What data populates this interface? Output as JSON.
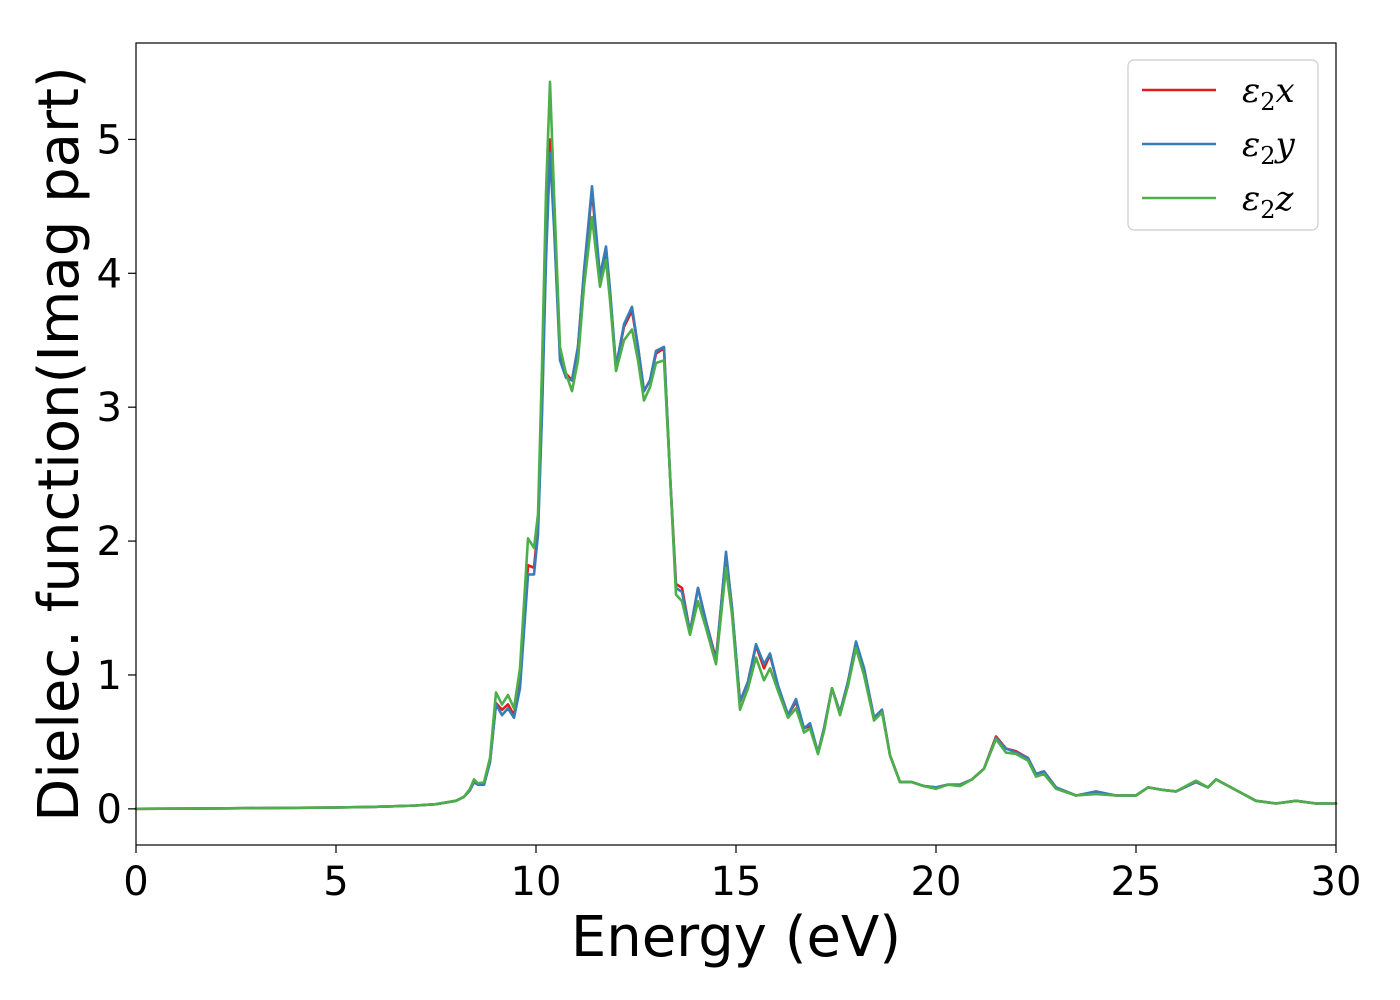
{
  "chart_data": {
    "type": "line",
    "xlabel": "Energy (eV)",
    "ylabel": "Dielec. function(Imag part)",
    "xlim": [
      0,
      30
    ],
    "ylim": [
      -0.27,
      5.72
    ],
    "xticks": [
      0,
      5,
      10,
      15,
      20,
      25,
      30
    ],
    "yticks": [
      0,
      1,
      2,
      3,
      4,
      5
    ],
    "grid": false,
    "legend_position": "top-right",
    "legend": [
      {
        "base": "ε",
        "sub": "2",
        "var": "x",
        "color": "#e41a1c"
      },
      {
        "base": "ε",
        "sub": "2",
        "var": "y",
        "color": "#377eb8"
      },
      {
        "base": "ε",
        "sub": "2",
        "var": "z",
        "color": "#4daf4a"
      }
    ],
    "series": [
      {
        "color": "#e41a1c",
        "points": [
          [
            0,
            0
          ],
          [
            2,
            0.003
          ],
          [
            4,
            0.008
          ],
          [
            5,
            0.01
          ],
          [
            6,
            0.015
          ],
          [
            7,
            0.025
          ],
          [
            7.5,
            0.035
          ],
          [
            8,
            0.06
          ],
          [
            8.2,
            0.09
          ],
          [
            8.35,
            0.14
          ],
          [
            8.45,
            0.2
          ],
          [
            8.55,
            0.18
          ],
          [
            8.7,
            0.18
          ],
          [
            8.85,
            0.35
          ],
          [
            9.0,
            0.79
          ],
          [
            9.15,
            0.74
          ],
          [
            9.3,
            0.78
          ],
          [
            9.45,
            0.7
          ],
          [
            9.6,
            0.95
          ],
          [
            9.8,
            1.82
          ],
          [
            9.95,
            1.8
          ],
          [
            10.05,
            2.1
          ],
          [
            10.15,
            3.0
          ],
          [
            10.25,
            4.2
          ],
          [
            10.35,
            5.0
          ],
          [
            10.45,
            4.4
          ],
          [
            10.6,
            3.4
          ],
          [
            10.75,
            3.25
          ],
          [
            10.9,
            3.2
          ],
          [
            11.05,
            3.45
          ],
          [
            11.2,
            4.0
          ],
          [
            11.4,
            4.62
          ],
          [
            11.6,
            3.95
          ],
          [
            11.75,
            4.18
          ],
          [
            11.85,
            3.85
          ],
          [
            12.0,
            3.3
          ],
          [
            12.2,
            3.6
          ],
          [
            12.4,
            3.72
          ],
          [
            12.55,
            3.45
          ],
          [
            12.7,
            3.12
          ],
          [
            12.85,
            3.2
          ],
          [
            13.0,
            3.4
          ],
          [
            13.2,
            3.44
          ],
          [
            13.35,
            2.5
          ],
          [
            13.5,
            1.68
          ],
          [
            13.65,
            1.65
          ],
          [
            13.85,
            1.32
          ],
          [
            14.05,
            1.65
          ],
          [
            14.25,
            1.4
          ],
          [
            14.5,
            1.12
          ],
          [
            14.75,
            1.9
          ],
          [
            14.9,
            1.5
          ],
          [
            15.1,
            0.8
          ],
          [
            15.3,
            0.95
          ],
          [
            15.5,
            1.22
          ],
          [
            15.7,
            1.05
          ],
          [
            15.85,
            1.15
          ],
          [
            16.05,
            0.92
          ],
          [
            16.3,
            0.7
          ],
          [
            16.5,
            0.8
          ],
          [
            16.7,
            0.6
          ],
          [
            16.85,
            0.62
          ],
          [
            17.05,
            0.42
          ],
          [
            17.2,
            0.6
          ],
          [
            17.4,
            0.9
          ],
          [
            17.6,
            0.72
          ],
          [
            17.8,
            0.95
          ],
          [
            18.0,
            1.24
          ],
          [
            18.2,
            1.05
          ],
          [
            18.45,
            0.68
          ],
          [
            18.65,
            0.74
          ],
          [
            18.85,
            0.4
          ],
          [
            19.1,
            0.2
          ],
          [
            19.4,
            0.2
          ],
          [
            19.7,
            0.17
          ],
          [
            20.0,
            0.16
          ],
          [
            20.3,
            0.18
          ],
          [
            20.6,
            0.18
          ],
          [
            20.9,
            0.22
          ],
          [
            21.2,
            0.3
          ],
          [
            21.5,
            0.54
          ],
          [
            21.75,
            0.45
          ],
          [
            22.0,
            0.43
          ],
          [
            22.3,
            0.38
          ],
          [
            22.5,
            0.26
          ],
          [
            22.7,
            0.28
          ],
          [
            23.0,
            0.16
          ],
          [
            23.5,
            0.1
          ],
          [
            24.0,
            0.12
          ],
          [
            24.5,
            0.1
          ],
          [
            25.0,
            0.1
          ],
          [
            25.3,
            0.16
          ],
          [
            25.7,
            0.14
          ],
          [
            26.0,
            0.13
          ],
          [
            26.5,
            0.2
          ],
          [
            26.8,
            0.16
          ],
          [
            27.0,
            0.22
          ],
          [
            27.5,
            0.14
          ],
          [
            28.0,
            0.06
          ],
          [
            28.5,
            0.04
          ],
          [
            29.0,
            0.06
          ],
          [
            29.5,
            0.04
          ],
          [
            30.0,
            0.04
          ]
        ]
      },
      {
        "color": "#377eb8",
        "points": [
          [
            0,
            0
          ],
          [
            2,
            0.003
          ],
          [
            4,
            0.008
          ],
          [
            5,
            0.01
          ],
          [
            6,
            0.015
          ],
          [
            7,
            0.025
          ],
          [
            7.5,
            0.035
          ],
          [
            8,
            0.06
          ],
          [
            8.2,
            0.09
          ],
          [
            8.35,
            0.14
          ],
          [
            8.45,
            0.2
          ],
          [
            8.55,
            0.18
          ],
          [
            8.7,
            0.18
          ],
          [
            8.85,
            0.35
          ],
          [
            9.0,
            0.78
          ],
          [
            9.15,
            0.7
          ],
          [
            9.3,
            0.75
          ],
          [
            9.45,
            0.68
          ],
          [
            9.6,
            0.9
          ],
          [
            9.8,
            1.75
          ],
          [
            9.95,
            1.75
          ],
          [
            10.05,
            2.05
          ],
          [
            10.15,
            2.95
          ],
          [
            10.25,
            4.1
          ],
          [
            10.35,
            4.9
          ],
          [
            10.45,
            4.35
          ],
          [
            10.6,
            3.35
          ],
          [
            10.75,
            3.22
          ],
          [
            10.9,
            3.2
          ],
          [
            11.05,
            3.45
          ],
          [
            11.2,
            4.02
          ],
          [
            11.4,
            4.65
          ],
          [
            11.6,
            3.98
          ],
          [
            11.75,
            4.2
          ],
          [
            11.85,
            3.88
          ],
          [
            12.0,
            3.3
          ],
          [
            12.2,
            3.62
          ],
          [
            12.4,
            3.75
          ],
          [
            12.55,
            3.45
          ],
          [
            12.7,
            3.12
          ],
          [
            12.85,
            3.2
          ],
          [
            13.0,
            3.42
          ],
          [
            13.2,
            3.45
          ],
          [
            13.35,
            2.5
          ],
          [
            13.5,
            1.65
          ],
          [
            13.65,
            1.62
          ],
          [
            13.85,
            1.32
          ],
          [
            14.05,
            1.65
          ],
          [
            14.25,
            1.4
          ],
          [
            14.5,
            1.1
          ],
          [
            14.75,
            1.92
          ],
          [
            14.9,
            1.5
          ],
          [
            15.1,
            0.8
          ],
          [
            15.3,
            0.95
          ],
          [
            15.5,
            1.23
          ],
          [
            15.7,
            1.08
          ],
          [
            15.85,
            1.16
          ],
          [
            16.05,
            0.92
          ],
          [
            16.3,
            0.7
          ],
          [
            16.5,
            0.82
          ],
          [
            16.7,
            0.6
          ],
          [
            16.85,
            0.64
          ],
          [
            17.05,
            0.42
          ],
          [
            17.2,
            0.6
          ],
          [
            17.4,
            0.9
          ],
          [
            17.6,
            0.72
          ],
          [
            17.8,
            0.95
          ],
          [
            18.0,
            1.25
          ],
          [
            18.2,
            1.05
          ],
          [
            18.45,
            0.68
          ],
          [
            18.65,
            0.74
          ],
          [
            18.85,
            0.4
          ],
          [
            19.1,
            0.2
          ],
          [
            19.4,
            0.2
          ],
          [
            19.7,
            0.17
          ],
          [
            20.0,
            0.16
          ],
          [
            20.3,
            0.18
          ],
          [
            20.6,
            0.18
          ],
          [
            20.9,
            0.22
          ],
          [
            21.2,
            0.3
          ],
          [
            21.5,
            0.53
          ],
          [
            21.75,
            0.45
          ],
          [
            22.0,
            0.42
          ],
          [
            22.3,
            0.38
          ],
          [
            22.5,
            0.26
          ],
          [
            22.7,
            0.28
          ],
          [
            23.0,
            0.16
          ],
          [
            23.5,
            0.1
          ],
          [
            24.0,
            0.13
          ],
          [
            24.5,
            0.1
          ],
          [
            25.0,
            0.1
          ],
          [
            25.3,
            0.16
          ],
          [
            25.7,
            0.14
          ],
          [
            26.0,
            0.13
          ],
          [
            26.5,
            0.2
          ],
          [
            26.8,
            0.16
          ],
          [
            27.0,
            0.22
          ],
          [
            27.5,
            0.14
          ],
          [
            28.0,
            0.06
          ],
          [
            28.5,
            0.04
          ],
          [
            29.0,
            0.06
          ],
          [
            29.5,
            0.04
          ],
          [
            30.0,
            0.04
          ]
        ]
      },
      {
        "color": "#4daf4a",
        "points": [
          [
            0,
            0
          ],
          [
            2,
            0.003
          ],
          [
            4,
            0.008
          ],
          [
            5,
            0.01
          ],
          [
            6,
            0.015
          ],
          [
            7,
            0.025
          ],
          [
            7.5,
            0.035
          ],
          [
            8,
            0.06
          ],
          [
            8.2,
            0.09
          ],
          [
            8.35,
            0.15
          ],
          [
            8.45,
            0.22
          ],
          [
            8.55,
            0.19
          ],
          [
            8.7,
            0.2
          ],
          [
            8.85,
            0.38
          ],
          [
            9.0,
            0.87
          ],
          [
            9.15,
            0.78
          ],
          [
            9.3,
            0.85
          ],
          [
            9.45,
            0.75
          ],
          [
            9.6,
            1.05
          ],
          [
            9.8,
            2.02
          ],
          [
            9.95,
            1.95
          ],
          [
            10.05,
            2.2
          ],
          [
            10.15,
            3.3
          ],
          [
            10.25,
            4.6
          ],
          [
            10.35,
            5.43
          ],
          [
            10.45,
            4.6
          ],
          [
            10.6,
            3.45
          ],
          [
            10.75,
            3.25
          ],
          [
            10.9,
            3.12
          ],
          [
            11.05,
            3.35
          ],
          [
            11.2,
            3.9
          ],
          [
            11.4,
            4.42
          ],
          [
            11.6,
            3.9
          ],
          [
            11.75,
            4.1
          ],
          [
            11.85,
            3.8
          ],
          [
            12.0,
            3.27
          ],
          [
            12.2,
            3.5
          ],
          [
            12.4,
            3.58
          ],
          [
            12.55,
            3.35
          ],
          [
            12.7,
            3.05
          ],
          [
            12.85,
            3.15
          ],
          [
            13.0,
            3.33
          ],
          [
            13.2,
            3.35
          ],
          [
            13.35,
            2.5
          ],
          [
            13.5,
            1.6
          ],
          [
            13.65,
            1.55
          ],
          [
            13.85,
            1.3
          ],
          [
            14.05,
            1.55
          ],
          [
            14.25,
            1.35
          ],
          [
            14.5,
            1.08
          ],
          [
            14.75,
            1.8
          ],
          [
            14.9,
            1.45
          ],
          [
            15.1,
            0.74
          ],
          [
            15.3,
            0.9
          ],
          [
            15.5,
            1.13
          ],
          [
            15.7,
            0.96
          ],
          [
            15.85,
            1.05
          ],
          [
            16.05,
            0.88
          ],
          [
            16.3,
            0.68
          ],
          [
            16.5,
            0.75
          ],
          [
            16.7,
            0.57
          ],
          [
            16.85,
            0.6
          ],
          [
            17.05,
            0.41
          ],
          [
            17.2,
            0.58
          ],
          [
            17.4,
            0.9
          ],
          [
            17.6,
            0.7
          ],
          [
            17.8,
            0.92
          ],
          [
            18.0,
            1.2
          ],
          [
            18.2,
            1.0
          ],
          [
            18.45,
            0.66
          ],
          [
            18.65,
            0.72
          ],
          [
            18.85,
            0.4
          ],
          [
            19.1,
            0.2
          ],
          [
            19.4,
            0.2
          ],
          [
            19.7,
            0.17
          ],
          [
            20.0,
            0.15
          ],
          [
            20.3,
            0.18
          ],
          [
            20.6,
            0.17
          ],
          [
            20.9,
            0.22
          ],
          [
            21.2,
            0.3
          ],
          [
            21.5,
            0.52
          ],
          [
            21.75,
            0.42
          ],
          [
            22.0,
            0.41
          ],
          [
            22.3,
            0.36
          ],
          [
            22.5,
            0.24
          ],
          [
            22.7,
            0.26
          ],
          [
            23.0,
            0.15
          ],
          [
            23.5,
            0.1
          ],
          [
            24.0,
            0.11
          ],
          [
            24.5,
            0.1
          ],
          [
            25.0,
            0.1
          ],
          [
            25.3,
            0.16
          ],
          [
            25.7,
            0.14
          ],
          [
            26.0,
            0.13
          ],
          [
            26.5,
            0.21
          ],
          [
            26.8,
            0.16
          ],
          [
            27.0,
            0.22
          ],
          [
            27.5,
            0.14
          ],
          [
            28.0,
            0.06
          ],
          [
            28.5,
            0.04
          ],
          [
            29.0,
            0.06
          ],
          [
            29.5,
            0.04
          ],
          [
            30.0,
            0.04
          ]
        ]
      }
    ]
  }
}
